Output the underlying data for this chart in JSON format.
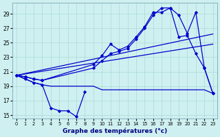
{
  "title": "Graphe des températures (°c)",
  "bg_color": "#cff0f0",
  "grid_color": "#aad8d8",
  "line_color": "#0000cc",
  "xlim": [
    -0.5,
    23.5
  ],
  "ylim": [
    14.5,
    30.5
  ],
  "yticks": [
    15,
    17,
    19,
    21,
    23,
    25,
    27,
    29
  ],
  "xticks": [
    0,
    1,
    2,
    3,
    4,
    5,
    6,
    7,
    8,
    9,
    10,
    11,
    12,
    13,
    14,
    15,
    16,
    17,
    18,
    19,
    20,
    21,
    22,
    23
  ],
  "curve1_x": [
    0,
    1,
    2,
    3,
    4,
    5,
    6,
    7,
    8
  ],
  "curve1_y": [
    20.5,
    20.0,
    19.5,
    19.2,
    16.0,
    15.6,
    15.6,
    14.8,
    18.2
  ],
  "curve2_x": [
    0,
    1,
    2,
    3,
    4,
    8,
    9,
    10,
    11,
    12,
    13,
    14,
    15,
    16,
    17,
    18,
    19,
    20,
    21,
    22,
    23
  ],
  "curve2_y": [
    20.5,
    20.0,
    19.5,
    19.2,
    19.0,
    19.0,
    19.0,
    18.5,
    18.5,
    18.5,
    18.5,
    18.5,
    18.5,
    18.5,
    18.5,
    18.5,
    18.5,
    18.5,
    18.5,
    18.5,
    18.0
  ],
  "curve3_x": [
    0,
    1,
    2,
    3,
    9,
    10,
    11,
    12,
    13,
    14,
    15,
    16,
    17,
    18,
    19,
    20,
    21,
    22,
    23
  ],
  "curve3_y": [
    20.5,
    20.3,
    20.0,
    19.8,
    22.0,
    23.2,
    24.8,
    24.0,
    24.5,
    25.8,
    27.2,
    29.2,
    29.2,
    29.8,
    25.8,
    26.0,
    23.5,
    21.5,
    18.0
  ],
  "curve4_x": [
    0,
    1,
    2,
    3,
    9,
    10,
    11,
    12,
    13,
    14,
    15,
    16,
    17,
    18,
    19,
    20,
    21,
    22,
    23
  ],
  "curve4_y": [
    20.5,
    20.3,
    20.0,
    19.8,
    21.5,
    22.5,
    23.5,
    23.8,
    24.2,
    25.5,
    27.0,
    28.8,
    29.8,
    29.8,
    28.8,
    26.3,
    29.2,
    21.5,
    18.0
  ],
  "trend1_x": [
    0,
    23
  ],
  "trend1_y": [
    20.5,
    24.8
  ],
  "trend2_x": [
    0,
    23
  ],
  "trend2_y": [
    20.5,
    26.2
  ]
}
